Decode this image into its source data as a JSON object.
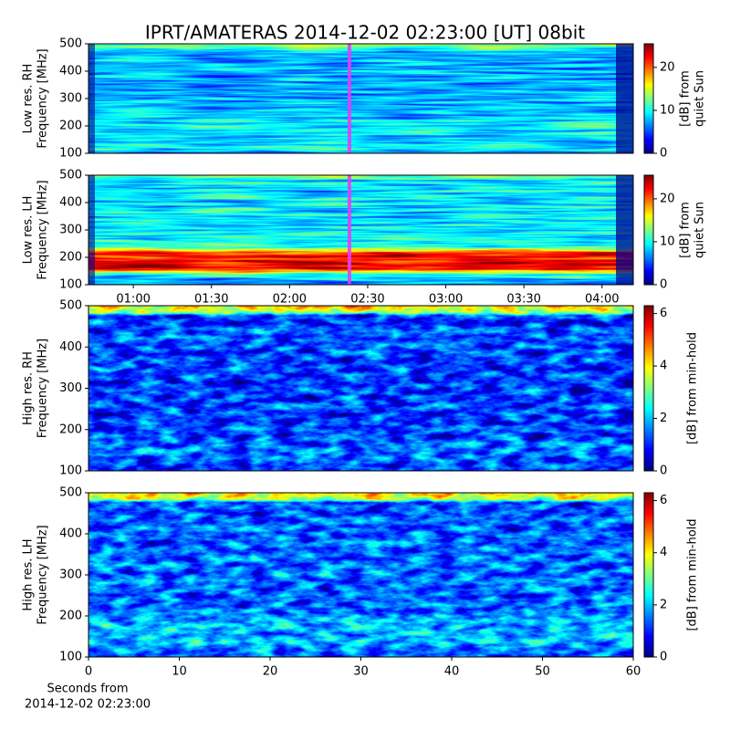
{
  "title": "IPRT/AMATERAS 2014-12-02 02:23:00 [UT]   08bit",
  "chart_data": [
    {
      "type": "heatmap",
      "ylabel": [
        "Low res. RH",
        "Frequency [MHz]"
      ],
      "ylim": [
        100,
        500
      ],
      "yticks": [
        100,
        200,
        300,
        400,
        500
      ],
      "xlim": [
        0.713,
        4.2
      ],
      "marker_x": 2.383,
      "marker_color": "#e040fb",
      "colormap": "jet",
      "colorbar": {
        "label": [
          "[dB] from",
          "quiet Sun"
        ],
        "lim": [
          0,
          25.5
        ],
        "ticks": [
          0,
          10,
          20
        ]
      }
    },
    {
      "type": "heatmap",
      "ylabel": [
        "Low res. LH",
        "Frequency [MHz]"
      ],
      "ylim": [
        100,
        500
      ],
      "yticks": [
        100,
        200,
        300,
        400,
        500
      ],
      "xlim": [
        0.713,
        4.2
      ],
      "marker_x": 2.383,
      "marker_color": "#e040fb",
      "colormap": "jet",
      "xticks": [
        {
          "value": 1.0,
          "label": "01:00"
        },
        {
          "value": 1.5,
          "label": "01:30"
        },
        {
          "value": 2.0,
          "label": "02:00"
        },
        {
          "value": 2.5,
          "label": "02:30"
        },
        {
          "value": 3.0,
          "label": "03:00"
        },
        {
          "value": 3.5,
          "label": "03:30"
        },
        {
          "value": 4.0,
          "label": "04:00"
        }
      ],
      "colorbar": {
        "label": [
          "[dB] from",
          "quiet Sun"
        ],
        "lim": [
          0,
          25.5
        ],
        "ticks": [
          0,
          10,
          20
        ]
      }
    },
    {
      "type": "heatmap",
      "ylabel": [
        "High res. RH",
        "Frequency [MHz]"
      ],
      "ylim": [
        100,
        500
      ],
      "yticks": [
        100,
        200,
        300,
        400,
        500
      ],
      "colormap": "jet",
      "colorbar": {
        "label": [
          "[dB] from min-hold"
        ],
        "lim": [
          0,
          6.3
        ],
        "ticks": [
          0,
          2,
          4,
          6
        ]
      }
    },
    {
      "type": "heatmap",
      "ylabel": [
        "High res. LH",
        "Frequency [MHz]"
      ],
      "ylim": [
        100,
        500
      ],
      "yticks": [
        100,
        200,
        300,
        400,
        500
      ],
      "colormap": "jet",
      "xlim": [
        0,
        60
      ],
      "xticks": [
        0,
        10,
        20,
        30,
        40,
        50,
        60
      ],
      "xlabel": [
        "Seconds from",
        "2014-12-02 02:23:00"
      ],
      "colorbar": {
        "label": [
          "[dB] from min-hold"
        ],
        "lim": [
          0,
          6.3
        ],
        "ticks": [
          0,
          2,
          4,
          6
        ]
      }
    }
  ]
}
